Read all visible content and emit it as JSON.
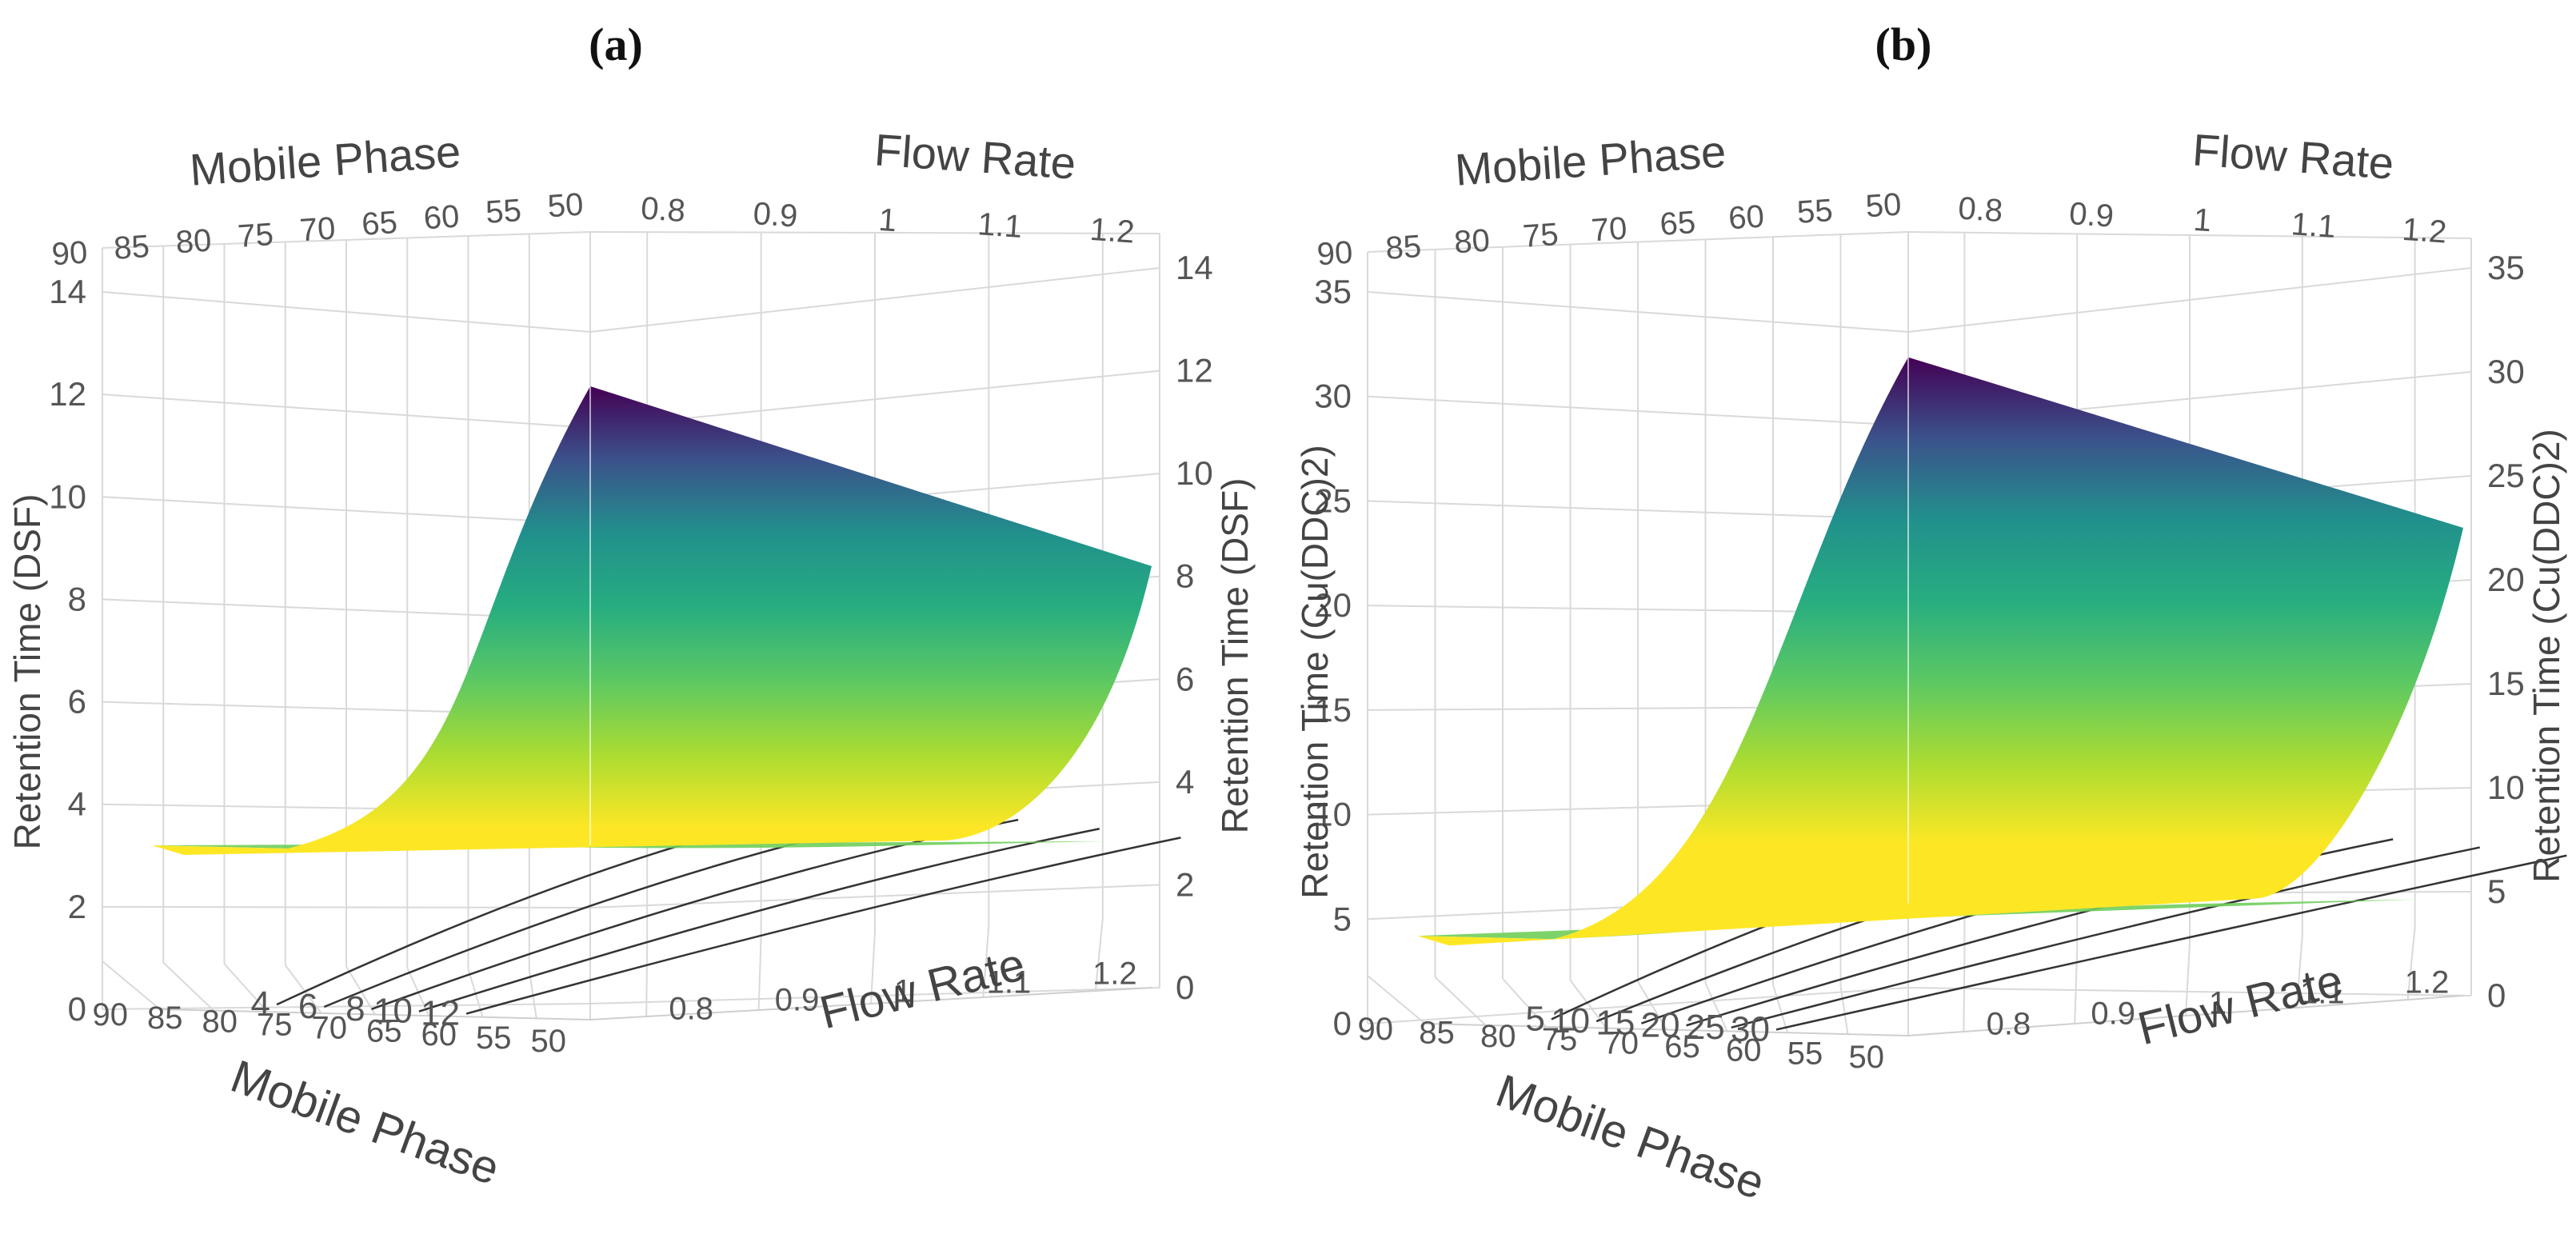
{
  "chart_data": [
    {
      "panel_label": "(a)",
      "type": "surface",
      "x_name": "Mobile Phase",
      "y_name": "Flow Rate",
      "z_name": "Retention Time (DSF)",
      "x_range": [
        50,
        90
      ],
      "y_range": [
        0.75,
        1.25
      ],
      "z_range": [
        0,
        14
      ],
      "x_ticks": [
        90,
        85,
        80,
        75,
        70,
        65,
        60,
        55,
        50
      ],
      "y_ticks": [
        0.8,
        0.9,
        1,
        1.1,
        1.2
      ],
      "z_ticks": [
        0,
        2,
        4,
        6,
        8,
        10,
        12,
        14
      ],
      "contour_levels": [
        4,
        6,
        8,
        10,
        12
      ],
      "corner_values": {
        "mp50_fr0.75": 13.2,
        "mp50_fr1.25": 8.2,
        "mp90_fr0.75": 3.2,
        "mp90_fr1.25": 3.3
      },
      "colormap": [
        "#440154",
        "#3b528b",
        "#21908c",
        "#27ad81",
        "#5cc863",
        "#aadc32",
        "#fde725"
      ]
    },
    {
      "panel_label": "(b)",
      "type": "surface",
      "x_name": "Mobile Phase",
      "y_name": "Flow Rate",
      "z_name": "Retention Time (Cu(DDC)2)",
      "x_range": [
        50,
        90
      ],
      "y_range": [
        0.75,
        1.25
      ],
      "z_range": [
        0,
        35
      ],
      "x_ticks": [
        90,
        85,
        80,
        75,
        70,
        65,
        60,
        55,
        50
      ],
      "y_ticks": [
        0.8,
        0.9,
        1,
        1.1,
        1.2
      ],
      "z_ticks": [
        0,
        5,
        10,
        15,
        20,
        25,
        30,
        35
      ],
      "contour_levels": [
        5,
        10,
        15,
        20,
        25,
        30
      ],
      "corner_values": {
        "mp50_fr0.75": 34.5,
        "mp50_fr1.25": 22.5,
        "mp90_fr0.75": 4.2,
        "mp90_fr1.25": 4.5
      },
      "colormap": [
        "#440154",
        "#3b528b",
        "#21908c",
        "#27ad81",
        "#5cc863",
        "#aadc32",
        "#fde725"
      ]
    }
  ]
}
